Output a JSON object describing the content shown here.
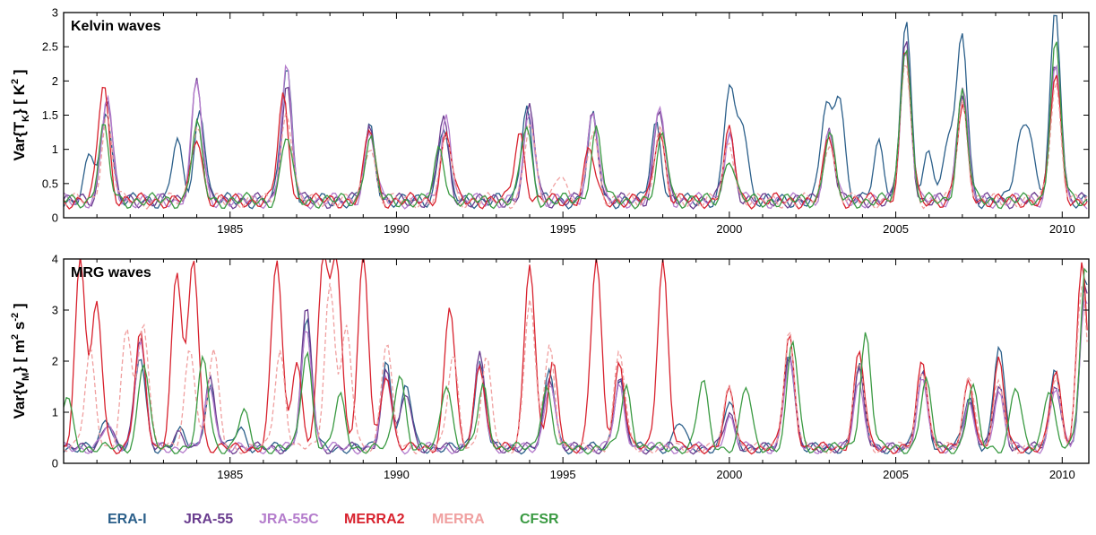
{
  "chart_data": [
    {
      "type": "line",
      "title": "Kelvin waves",
      "ylabel": {
        "pre": "Var{T",
        "sub": "K",
        "mid": "}  [ K",
        "sup": "2",
        "post": " ]"
      },
      "xlim": [
        1980.0,
        2010.8
      ],
      "ylim": [
        0,
        3
      ],
      "yticks": [
        "0",
        "0.5",
        "1",
        "1.5",
        "2",
        "2.5",
        "3"
      ],
      "xticks": [
        "1985",
        "1990",
        "1995",
        "2000",
        "2005",
        "2010"
      ],
      "grid": false,
      "base": 0.25,
      "series": [
        {
          "name": "ERA-I",
          "color": "#2b5f8a",
          "dashed": false,
          "peaks": [
            [
              1980.8,
              0.9
            ],
            [
              1981.3,
              1.6
            ],
            [
              1983.4,
              1.1
            ],
            [
              1984.1,
              1.6
            ],
            [
              1986.7,
              2.25
            ],
            [
              1989.2,
              1.3
            ],
            [
              1991.4,
              1.35
            ],
            [
              1993.9,
              1.65
            ],
            [
              1995.9,
              1.45
            ],
            [
              1997.8,
              1.4
            ],
            [
              2000.0,
              1.9
            ],
            [
              2000.4,
              1.4
            ],
            [
              2002.9,
              1.6
            ],
            [
              2003.3,
              1.85
            ],
            [
              2004.5,
              1.1
            ],
            [
              2005.3,
              2.85
            ],
            [
              2006.0,
              1.0
            ],
            [
              2006.6,
              1.2
            ],
            [
              2007.0,
              2.65
            ],
            [
              2008.7,
              1.0
            ],
            [
              2009.0,
              1.3
            ],
            [
              2009.8,
              3.0
            ]
          ]
        },
        {
          "name": "JRA-55",
          "color": "#6a3d8f",
          "dashed": false,
          "peaks": [
            [
              1981.3,
              1.8
            ],
            [
              1984.0,
              2.05
            ],
            [
              1986.7,
              1.95
            ],
            [
              1989.2,
              1.35
            ],
            [
              1991.4,
              1.45
            ],
            [
              1994.0,
              1.6
            ],
            [
              1995.9,
              1.55
            ],
            [
              1997.9,
              1.6
            ],
            [
              2000.0,
              1.25
            ],
            [
              2003.0,
              1.3
            ],
            [
              2005.3,
              2.55
            ],
            [
              2007.0,
              1.9
            ],
            [
              2009.8,
              2.35
            ]
          ]
        },
        {
          "name": "JRA-55C",
          "color": "#b47ccc",
          "dashed": false,
          "peaks": [
            [
              1981.3,
              1.75
            ],
            [
              1984.0,
              2.0
            ],
            [
              1986.7,
              2.15
            ],
            [
              1989.2,
              1.25
            ],
            [
              1991.5,
              1.5
            ],
            [
              1994.0,
              1.55
            ],
            [
              1995.9,
              1.6
            ],
            [
              1997.9,
              1.65
            ],
            [
              2000.0,
              1.2
            ],
            [
              2003.0,
              1.25
            ],
            [
              2005.3,
              2.45
            ],
            [
              2007.0,
              1.95
            ],
            [
              2009.8,
              2.3
            ]
          ]
        },
        {
          "name": "MERRA2",
          "color": "#d8222e",
          "dashed": false,
          "peaks": [
            [
              1981.2,
              2.0
            ],
            [
              1984.0,
              1.2
            ],
            [
              1986.6,
              1.75
            ],
            [
              1989.2,
              1.3
            ],
            [
              1991.5,
              1.25
            ],
            [
              1993.7,
              1.25
            ],
            [
              1995.8,
              1.0
            ],
            [
              1997.9,
              1.3
            ],
            [
              2000.0,
              1.25
            ],
            [
              2003.0,
              1.2
            ],
            [
              2005.3,
              2.45
            ],
            [
              2007.0,
              1.6
            ],
            [
              2009.8,
              2.1
            ]
          ]
        },
        {
          "name": "MERRA",
          "color": "#f0a0a0",
          "dashed": true,
          "peaks": [
            [
              1981.3,
              1.5
            ],
            [
              1984.0,
              1.4
            ],
            [
              1986.7,
              1.6
            ],
            [
              1989.2,
              1.1
            ],
            [
              1991.5,
              1.2
            ],
            [
              1994.0,
              1.35
            ],
            [
              1994.9,
              0.7
            ],
            [
              1995.9,
              1.3
            ],
            [
              1997.9,
              1.3
            ],
            [
              2000.0,
              1.1
            ],
            [
              2003.0,
              1.15
            ],
            [
              2005.3,
              2.3
            ],
            [
              2007.0,
              1.7
            ],
            [
              2009.8,
              2.0
            ]
          ]
        },
        {
          "name": "CFSR",
          "color": "#3a9a42",
          "dashed": false,
          "peaks": [
            [
              1981.2,
              1.3
            ],
            [
              1984.0,
              1.35
            ],
            [
              1986.7,
              1.2
            ],
            [
              1989.2,
              1.2
            ],
            [
              1991.3,
              1.0
            ],
            [
              1993.9,
              1.35
            ],
            [
              1996.0,
              1.3
            ],
            [
              1998.0,
              1.2
            ],
            [
              2000.0,
              0.9
            ],
            [
              2003.0,
              1.25
            ],
            [
              2005.3,
              2.6
            ],
            [
              2007.0,
              1.85
            ],
            [
              2009.8,
              2.55
            ]
          ]
        }
      ]
    },
    {
      "type": "line",
      "title": "MRG waves",
      "ylabel": {
        "pre": "Var{v",
        "sub": "M",
        "mid": "}  [ m",
        "sup": "2",
        "post": " s",
        "sup2": "-2",
        "post2": " ]"
      },
      "xlim": [
        1980.0,
        2010.8
      ],
      "ylim": [
        0,
        4
      ],
      "yticks": [
        "0",
        "1",
        "2",
        "3",
        "4"
      ],
      "xticks": [
        "1985",
        "1990",
        "1995",
        "2000",
        "2005",
        "2010"
      ],
      "grid": false,
      "base": 0.3,
      "series": [
        {
          "name": "ERA-I",
          "color": "#2b5f8a",
          "dashed": false,
          "peaks": [
            [
              1981.3,
              0.9
            ],
            [
              1982.3,
              2.1
            ],
            [
              1983.5,
              0.6
            ],
            [
              1984.4,
              1.5
            ],
            [
              1985.3,
              0.7
            ],
            [
              1987.3,
              2.8
            ],
            [
              1989.7,
              2.0
            ],
            [
              1990.3,
              1.5
            ],
            [
              1992.5,
              2.0
            ],
            [
              1994.6,
              1.8
            ],
            [
              1996.7,
              1.7
            ],
            [
              1998.5,
              0.8
            ],
            [
              2000.0,
              1.2
            ],
            [
              2001.8,
              2.2
            ],
            [
              2003.9,
              1.9
            ],
            [
              2005.8,
              1.8
            ],
            [
              2007.2,
              1.3
            ],
            [
              2008.1,
              2.3
            ],
            [
              2009.8,
              1.8
            ],
            [
              2010.7,
              3.6
            ]
          ]
        },
        {
          "name": "JRA-55",
          "color": "#6a3d8f",
          "dashed": false,
          "peaks": [
            [
              1981.3,
              0.8
            ],
            [
              1982.3,
              2.55
            ],
            [
              1983.5,
              0.6
            ],
            [
              1984.4,
              1.6
            ],
            [
              1987.3,
              3.0
            ],
            [
              1989.7,
              1.8
            ],
            [
              1990.3,
              1.4
            ],
            [
              1992.5,
              2.1
            ],
            [
              1994.6,
              1.75
            ],
            [
              1996.7,
              1.6
            ],
            [
              2000.0,
              1.0
            ],
            [
              2001.8,
              2.2
            ],
            [
              2003.9,
              1.8
            ],
            [
              2005.8,
              1.8
            ],
            [
              2007.2,
              1.2
            ],
            [
              2008.1,
              1.5
            ],
            [
              2009.8,
              1.6
            ],
            [
              2010.7,
              3.5
            ]
          ]
        },
        {
          "name": "JRA-55C",
          "color": "#b47ccc",
          "dashed": false,
          "peaks": [
            [
              1981.3,
              0.7
            ],
            [
              1982.3,
              2.4
            ],
            [
              1984.4,
              1.5
            ],
            [
              1987.3,
              2.7
            ],
            [
              1989.7,
              1.7
            ],
            [
              1992.5,
              1.9
            ],
            [
              1994.6,
              1.6
            ],
            [
              1996.7,
              1.5
            ],
            [
              2000.0,
              0.9
            ],
            [
              2001.8,
              2.0
            ],
            [
              2003.9,
              1.6
            ],
            [
              2005.8,
              1.6
            ],
            [
              2007.2,
              1.1
            ],
            [
              2008.1,
              1.4
            ],
            [
              2009.8,
              1.5
            ],
            [
              2010.7,
              3.4
            ]
          ]
        },
        {
          "name": "MERRA2",
          "color": "#d8222e",
          "dashed": false,
          "peaks": [
            [
              1980.5,
              4.0
            ],
            [
              1981.0,
              3.1
            ],
            [
              1982.3,
              2.5
            ],
            [
              1983.4,
              3.7
            ],
            [
              1983.9,
              4.0
            ],
            [
              1986.4,
              4.0
            ],
            [
              1987.0,
              2.0
            ],
            [
              1987.8,
              4.0
            ],
            [
              1988.2,
              4.0
            ],
            [
              1989.0,
              4.0
            ],
            [
              1989.7,
              1.8
            ],
            [
              1991.6,
              3.1
            ],
            [
              1992.5,
              2.0
            ],
            [
              1994.0,
              4.0
            ],
            [
              1994.7,
              1.9
            ],
            [
              1996.0,
              4.0
            ],
            [
              1996.7,
              2.0
            ],
            [
              1998.0,
              4.0
            ],
            [
              2000.0,
              1.4
            ],
            [
              2001.8,
              2.5
            ],
            [
              2003.9,
              2.2
            ],
            [
              2005.8,
              2.0
            ],
            [
              2007.2,
              1.6
            ],
            [
              2008.1,
              2.0
            ],
            [
              2009.8,
              1.8
            ],
            [
              2010.6,
              4.0
            ]
          ]
        },
        {
          "name": "MERRA",
          "color": "#f0a0a0",
          "dashed": true,
          "peaks": [
            [
              1980.8,
              2.2
            ],
            [
              1981.9,
              2.6
            ],
            [
              1982.4,
              2.8
            ],
            [
              1983.8,
              2.3
            ],
            [
              1984.5,
              2.2
            ],
            [
              1986.5,
              2.2
            ],
            [
              1988.0,
              3.5
            ],
            [
              1988.5,
              2.6
            ],
            [
              1989.7,
              2.4
            ],
            [
              1991.7,
              2.1
            ],
            [
              1992.7,
              2.0
            ],
            [
              1994.0,
              3.2
            ],
            [
              1994.6,
              2.3
            ],
            [
              1996.7,
              2.2
            ],
            [
              2000.0,
              1.5
            ],
            [
              2001.8,
              2.6
            ],
            [
              2003.9,
              2.0
            ],
            [
              2005.8,
              1.9
            ],
            [
              2007.2,
              1.8
            ],
            [
              2008.1,
              1.6
            ],
            [
              2009.8,
              1.7
            ],
            [
              2010.6,
              3.5
            ]
          ]
        },
        {
          "name": "CFSR",
          "color": "#3a9a42",
          "dashed": false,
          "peaks": [
            [
              1980.1,
              1.3
            ],
            [
              1982.4,
              2.0
            ],
            [
              1984.2,
              2.05
            ],
            [
              1985.4,
              1.0
            ],
            [
              1987.3,
              2.2
            ],
            [
              1988.3,
              1.3
            ],
            [
              1990.1,
              1.8
            ],
            [
              1991.5,
              1.6
            ],
            [
              1992.6,
              1.5
            ],
            [
              1994.5,
              1.5
            ],
            [
              1996.9,
              1.5
            ],
            [
              1999.2,
              1.6
            ],
            [
              2000.5,
              1.5
            ],
            [
              2001.9,
              2.4
            ],
            [
              2004.1,
              2.55
            ],
            [
              2005.9,
              1.6
            ],
            [
              2007.3,
              1.5
            ],
            [
              2008.6,
              1.5
            ],
            [
              2009.6,
              1.5
            ],
            [
              2010.7,
              3.9
            ]
          ]
        }
      ]
    }
  ]
}
